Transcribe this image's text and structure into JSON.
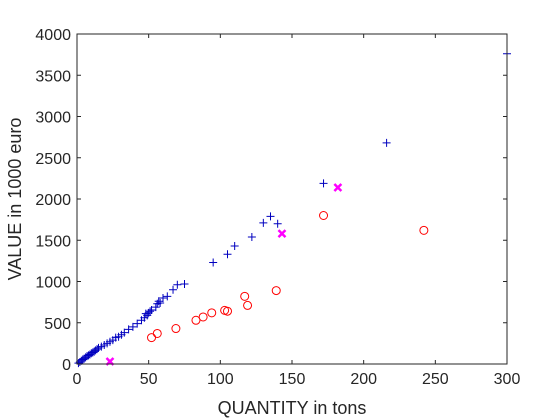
{
  "chart_data": {
    "type": "scatter",
    "title": "",
    "xlabel": "QUANTITY in tons",
    "ylabel": "VALUE in 1000 euro",
    "xlim": [
      0,
      300
    ],
    "ylim": [
      0,
      4000
    ],
    "xticks": [
      0,
      50,
      100,
      150,
      200,
      250,
      300
    ],
    "yticks": [
      0,
      500,
      1000,
      1500,
      2000,
      2500,
      3000,
      3500,
      4000
    ],
    "grid": false,
    "legend": "none",
    "series": [
      {
        "marker": "plus",
        "color": "#0000bf",
        "points": [
          [
            1,
            10
          ],
          [
            2,
            25
          ],
          [
            3,
            40
          ],
          [
            4,
            55
          ],
          [
            5,
            65
          ],
          [
            6,
            80
          ],
          [
            7,
            95
          ],
          [
            8,
            105
          ],
          [
            9,
            115
          ],
          [
            10,
            130
          ],
          [
            11,
            140
          ],
          [
            12,
            150
          ],
          [
            13,
            165
          ],
          [
            14,
            180
          ],
          [
            15,
            195
          ],
          [
            17,
            210
          ],
          [
            19,
            230
          ],
          [
            21,
            250
          ],
          [
            23,
            270
          ],
          [
            25,
            290
          ],
          [
            27,
            320
          ],
          [
            29,
            330
          ],
          [
            31,
            355
          ],
          [
            33,
            380
          ],
          [
            36,
            420
          ],
          [
            39,
            450
          ],
          [
            42,
            490
          ],
          [
            45,
            530
          ],
          [
            47,
            560
          ],
          [
            48,
            610
          ],
          [
            49,
            590
          ],
          [
            50,
            620
          ],
          [
            51,
            640
          ],
          [
            52,
            655
          ],
          [
            55,
            690
          ],
          [
            56,
            730
          ],
          [
            57,
            760
          ],
          [
            58,
            740
          ],
          [
            60,
            800
          ],
          [
            63,
            820
          ],
          [
            67,
            900
          ],
          [
            70,
            960
          ],
          [
            75,
            970
          ],
          [
            95,
            1230
          ],
          [
            105,
            1330
          ],
          [
            110,
            1430
          ],
          [
            122,
            1540
          ],
          [
            130,
            1710
          ],
          [
            135,
            1790
          ],
          [
            140,
            1700
          ],
          [
            172,
            2190
          ],
          [
            216,
            2680
          ],
          [
            300,
            3760
          ]
        ]
      },
      {
        "marker": "circle",
        "color": "#ff0000",
        "points": [
          [
            52,
            320
          ],
          [
            56,
            370
          ],
          [
            69,
            430
          ],
          [
            83,
            530
          ],
          [
            88,
            570
          ],
          [
            94,
            620
          ],
          [
            103,
            650
          ],
          [
            105,
            640
          ],
          [
            117,
            820
          ],
          [
            119,
            710
          ],
          [
            139,
            890
          ],
          [
            172,
            1800
          ],
          [
            242,
            1620
          ]
        ]
      },
      {
        "marker": "x",
        "color": "#ff00ff",
        "points": [
          [
            23,
            30
          ],
          [
            143,
            1580
          ],
          [
            182,
            2140
          ]
        ]
      }
    ]
  }
}
